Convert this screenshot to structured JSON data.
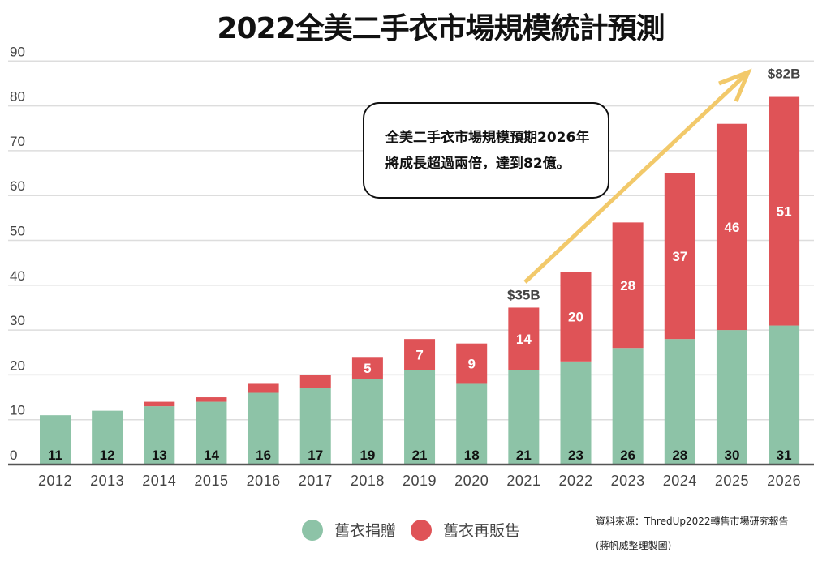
{
  "chart_data": {
    "type": "bar",
    "stacked": true,
    "title": "2022全美二手衣市場規模統計預測",
    "xlabel": "",
    "ylabel": "",
    "ylim": [
      0,
      90
    ],
    "yticks": [
      0,
      10,
      20,
      30,
      40,
      50,
      60,
      70,
      80,
      90
    ],
    "grid": true,
    "categories": [
      "2012",
      "2013",
      "2014",
      "2015",
      "2016",
      "2017",
      "2018",
      "2019",
      "2020",
      "2021",
      "2022",
      "2023",
      "2024",
      "2025",
      "2026"
    ],
    "series": [
      {
        "name": "舊衣捐贈",
        "color": "#8DC3A7",
        "values": [
          11,
          12,
          13,
          14,
          16,
          17,
          19,
          21,
          18,
          21,
          23,
          26,
          28,
          30,
          31
        ],
        "labels": [
          "11",
          "12",
          "13",
          "14",
          "16",
          "17",
          "19",
          "21",
          "18",
          "21",
          "23",
          "26",
          "28",
          "30",
          "31"
        ]
      },
      {
        "name": "舊衣再販售",
        "color": "#DF5357",
        "values": [
          0,
          0,
          1,
          1,
          2,
          3,
          5,
          7,
          9,
          14,
          20,
          28,
          37,
          46,
          51
        ],
        "labels": [
          "",
          "",
          "",
          "",
          "",
          "",
          "5",
          "7",
          "9",
          "14",
          "20",
          "28",
          "37",
          "46",
          "51"
        ]
      }
    ],
    "annotations": {
      "total_2021": "$35B",
      "total_2026": "$82B",
      "callout_lines": [
        "全美二手衣市場規模預期2026年",
        "將成長超過兩倍，達到82億。"
      ],
      "arrow_color": "#F2C96A"
    },
    "legend": {
      "position": "bottom-center",
      "entries": [
        "舊衣捐贈",
        "舊衣再販售"
      ]
    }
  },
  "legend": {
    "items": [
      {
        "label": "舊衣捐贈"
      },
      {
        "label": "舊衣再販售"
      }
    ]
  },
  "source": {
    "line1": "資料來源：ThredUp2022轉售市場研究報告",
    "line2": "(蔣帆威整理製圖)"
  }
}
